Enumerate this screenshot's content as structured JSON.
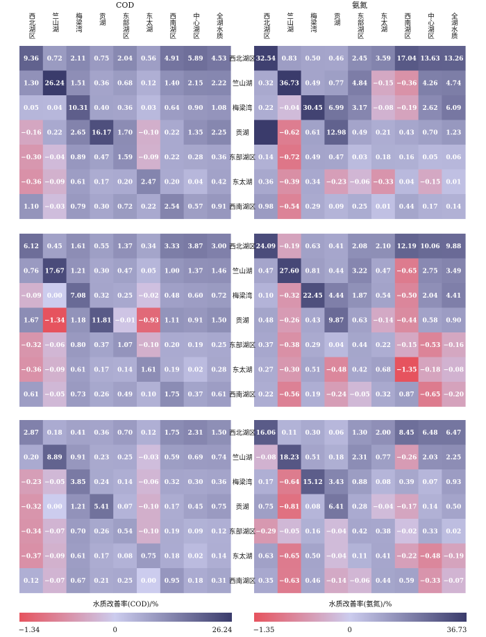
{
  "chart_data": {
    "type": "heatmap",
    "titles": {
      "cod": "COD",
      "nh": "氨氮"
    },
    "col_labels": [
      "西北湖区",
      "竺山湖",
      "梅梁湾",
      "贡湖",
      "东部湖区",
      "东太湖",
      "西南湖区",
      "中心湖区",
      "全湖水质"
    ],
    "row_labels": [
      "西北湖区",
      "竺山湖",
      "梅梁湾",
      "贡湖",
      "东部湖区",
      "东太湖",
      "西南湖区"
    ],
    "cod": {
      "colorbar_label": "水质改善率(COD)/%",
      "colorbar_ticks": [
        "−1.34",
        "0",
        "26.24"
      ],
      "range": [
        -1.34,
        0,
        26.24
      ],
      "panels": [
        [
          [
            9.36,
            0.72,
            2.11,
            0.75,
            2.04,
            0.56,
            4.91,
            5.89,
            4.53
          ],
          [
            1.3,
            26.24,
            1.51,
            0.36,
            0.68,
            0.12,
            1.4,
            2.15,
            2.22
          ],
          [
            0.05,
            0.04,
            10.31,
            0.4,
            0.36,
            0.03,
            0.64,
            0.9,
            1.08
          ],
          [
            -0.16,
            0.22,
            2.65,
            16.17,
            1.7,
            -0.1,
            0.22,
            1.35,
            2.25
          ],
          [
            -0.3,
            -0.04,
            0.89,
            0.47,
            1.59,
            -0.09,
            0.22,
            0.28,
            0.36
          ],
          [
            -0.36,
            -0.09,
            0.61,
            0.17,
            0.2,
            2.47,
            0.2,
            0.04,
            0.42
          ],
          [
            1.1,
            -0.03,
            0.79,
            0.3,
            0.72,
            0.22,
            2.54,
            0.57,
            0.91
          ]
        ],
        [
          [
            6.12,
            0.45,
            1.61,
            0.55,
            1.37,
            0.34,
            3.33,
            3.87,
            3.0
          ],
          [
            0.76,
            17.67,
            1.21,
            0.3,
            0.47,
            0.05,
            1.0,
            1.37,
            1.46
          ],
          [
            -0.09,
            0.0,
            7.08,
            0.32,
            0.25,
            -0.02,
            0.48,
            0.6,
            0.72
          ],
          [
            1.67,
            -1.34,
            1.18,
            11.81,
            -0.01,
            -0.93,
            1.11,
            0.91,
            1.5
          ],
          [
            -0.32,
            -0.06,
            0.8,
            0.37,
            1.07,
            -0.1,
            0.2,
            0.19,
            0.25
          ],
          [
            -0.36,
            -0.09,
            0.61,
            0.17,
            0.14,
            1.61,
            0.19,
            0.02,
            0.28
          ],
          [
            0.61,
            -0.05,
            0.73,
            0.26,
            0.49,
            0.1,
            1.75,
            0.37,
            0.61
          ]
        ],
        [
          [
            2.87,
            0.18,
            0.41,
            0.36,
            0.7,
            0.12,
            1.75,
            2.31,
            1.5
          ],
          [
            0.2,
            8.89,
            0.91,
            0.23,
            0.25,
            -0.03,
            0.59,
            0.69,
            0.74
          ],
          [
            -0.23,
            -0.05,
            3.85,
            0.24,
            0.14,
            -0.06,
            0.32,
            0.3,
            0.36
          ],
          [
            -0.32,
            0.0,
            1.21,
            5.41,
            0.07,
            -0.1,
            0.17,
            0.45,
            0.75
          ],
          [
            -0.34,
            -0.07,
            0.7,
            0.26,
            0.54,
            -0.1,
            0.19,
            0.09,
            0.12
          ],
          [
            -0.37,
            -0.09,
            0.61,
            0.17,
            0.08,
            0.75,
            0.18,
            0.02,
            0.14
          ],
          [
            0.12,
            -0.07,
            0.67,
            0.21,
            0.25,
            0.0,
            0.95,
            0.18,
            0.31
          ]
        ]
      ]
    },
    "nh": {
      "colorbar_label": "水质改善率(氨氮)/%",
      "colorbar_ticks": [
        "−1.35",
        "0",
        "36.73"
      ],
      "range": [
        -1.35,
        0,
        36.73
      ],
      "panels": [
        [
          [
            32.54,
            0.83,
            0.5,
            0.46,
            2.45,
            3.59,
            17.04,
            13.63,
            13.26
          ],
          [
            0.32,
            36.73,
            0.49,
            0.77,
            4.84,
            -0.15,
            -0.36,
            4.26,
            4.74
          ],
          [
            0.22,
            -0.04,
            30.45,
            6.99,
            3.17,
            -0.08,
            -0.19,
            2.62,
            6.09
          ],
          [
            null,
            -0.62,
            0.61,
            12.98,
            0.49,
            0.21,
            0.43,
            0.7,
            1.23
          ],
          [
            0.14,
            -0.72,
            0.49,
            0.47,
            0.03,
            0.18,
            0.16,
            0.05,
            0.06
          ],
          [
            0.36,
            -0.39,
            0.34,
            -0.23,
            -0.06,
            -0.33,
            0.04,
            -0.15,
            0.01
          ],
          [
            0.98,
            -0.54,
            0.29,
            0.09,
            0.25,
            0.01,
            0.44,
            0.17,
            0.14
          ]
        ],
        [
          [
            24.09,
            -0.19,
            0.63,
            0.41,
            2.08,
            2.1,
            12.19,
            10.06,
            9.88
          ],
          [
            0.47,
            27.6,
            0.81,
            0.44,
            3.22,
            0.47,
            -0.65,
            2.75,
            3.49
          ],
          [
            0.1,
            -0.32,
            22.45,
            4.44,
            1.87,
            0.54,
            -0.5,
            2.04,
            4.41
          ],
          [
            0.48,
            -0.26,
            0.43,
            9.87,
            0.63,
            -0.14,
            -0.44,
            0.58,
            0.9
          ],
          [
            0.37,
            -0.38,
            0.29,
            0.04,
            0.44,
            0.22,
            -0.15,
            -0.53,
            -0.16
          ],
          [
            0.27,
            -0.3,
            0.51,
            -0.48,
            0.42,
            0.68,
            -1.35,
            -0.18,
            -0.08
          ],
          [
            0.22,
            -0.56,
            0.19,
            -0.24,
            -0.05,
            0.32,
            0.87,
            -0.65,
            -0.2
          ]
        ],
        [
          [
            16.06,
            0.11,
            0.3,
            0.06,
            1.3,
            2.0,
            8.45,
            6.48,
            6.47
          ],
          [
            -0.08,
            18.23,
            0.51,
            0.18,
            2.31,
            0.77,
            -0.26,
            2.03,
            2.25
          ],
          [
            0.17,
            -0.64,
            15.12,
            3.43,
            0.88,
            0.08,
            0.39,
            0.07,
            0.93
          ],
          [
            0.75,
            -0.81,
            0.08,
            6.41,
            0.28,
            -0.04,
            -0.17,
            0.14,
            0.5
          ],
          [
            -0.29,
            -0.05,
            0.16,
            -0.04,
            0.42,
            0.38,
            -0.02,
            0.33,
            0.02
          ],
          [
            0.63,
            -0.65,
            0.5,
            -0.04,
            0.11,
            0.41,
            -0.22,
            -0.48,
            -0.19
          ],
          [
            0.35,
            -0.63,
            0.46,
            -0.14,
            -0.06,
            0.44,
            0.59,
            -0.33,
            -0.07
          ]
        ]
      ]
    },
    "colors": {
      "neg": "#e6535e",
      "zero": "#ccccee",
      "pos": "#3a3b6b"
    }
  }
}
